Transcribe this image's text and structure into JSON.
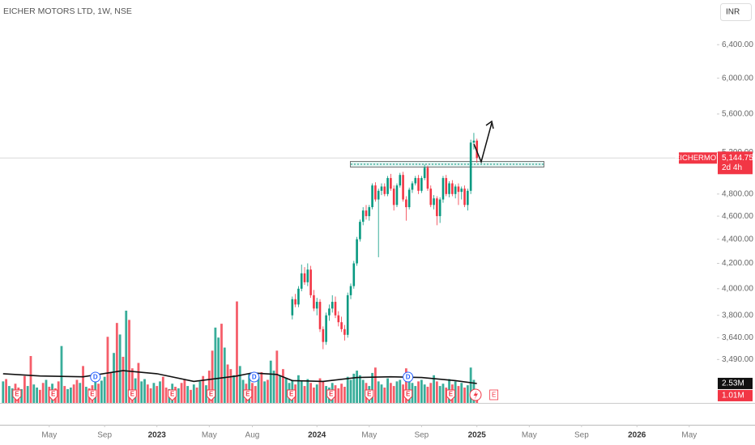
{
  "chart_data": {
    "type": "candlestick",
    "title": "EICHER MOTORS LTD, 1W, NSE",
    "currency": "INR",
    "log_scale": true,
    "up_color": "#089981",
    "down_color": "#f23645",
    "ylim": [
      3210,
      6975
    ],
    "yticks": [
      {
        "value": 3490,
        "label": "3,490.00"
      },
      {
        "value": 3640,
        "label": "3,640.00"
      },
      {
        "value": 3800,
        "label": "3,800.00"
      },
      {
        "value": 4000,
        "label": "4,000.00"
      },
      {
        "value": 4200,
        "label": "4,200.00"
      },
      {
        "value": 4400,
        "label": "4,400.00"
      },
      {
        "value": 4600,
        "label": "4,600.00"
      },
      {
        "value": 4800,
        "label": "4,800.00"
      },
      {
        "value": 5200,
        "label": "5,200.00"
      },
      {
        "value": 5600,
        "label": "5,600.00"
      },
      {
        "value": 6000,
        "label": "6,000.00"
      },
      {
        "value": 6400,
        "label": "6,400.00"
      }
    ],
    "xlim": [
      -51,
      182
    ],
    "xticks": [
      {
        "value": -35,
        "label": "May"
      },
      {
        "value": -17,
        "label": "Sep"
      },
      {
        "value": 0,
        "label": "2023"
      },
      {
        "value": 17,
        "label": "May"
      },
      {
        "value": 31,
        "label": "Aug"
      },
      {
        "value": 52,
        "label": "2024"
      },
      {
        "value": 69,
        "label": "May"
      },
      {
        "value": 86,
        "label": "Sep"
      },
      {
        "value": 104,
        "label": "2025"
      },
      {
        "value": 121,
        "label": "May"
      },
      {
        "value": 138,
        "label": "Sep"
      },
      {
        "value": 156,
        "label": "2026"
      },
      {
        "value": 173,
        "label": "May"
      }
    ],
    "candles": {
      "x": [
        44,
        45,
        46,
        47,
        48,
        49,
        50,
        51,
        52,
        53,
        54,
        55,
        56,
        57,
        58,
        59,
        60,
        61,
        62,
        63,
        64,
        65,
        66,
        67,
        68,
        69,
        70,
        71,
        72,
        73,
        74,
        75,
        76,
        77,
        78,
        79,
        80,
        81,
        82,
        83,
        84,
        85,
        86,
        87,
        88,
        89,
        90,
        91,
        92,
        93,
        94,
        95,
        96,
        97,
        98,
        99,
        100,
        101,
        102,
        103,
        104
      ],
      "open": [
        3800,
        3920,
        3880,
        4000,
        4120,
        4050,
        4150,
        3950,
        3850,
        3900,
        3700,
        3610,
        3800,
        3850,
        3900,
        3800,
        3750,
        3700,
        3660,
        3950,
        4020,
        4200,
        4400,
        4550,
        4650,
        4600,
        4680,
        4880,
        4750,
        4830,
        4870,
        4800,
        4950,
        4850,
        4700,
        4880,
        4980,
        4750,
        4680,
        4840,
        4900,
        4950,
        4830,
        4950,
        5050,
        4850,
        4700,
        4760,
        4600,
        4750,
        4950,
        4800,
        4900,
        4800,
        4870,
        4820,
        4850,
        4700,
        4830,
        5300,
        5320
      ],
      "high": [
        3940,
        3960,
        4020,
        4190,
        4170,
        4200,
        4180,
        3990,
        3930,
        3920,
        3720,
        3820,
        3880,
        3950,
        3940,
        3830,
        3790,
        3730,
        3970,
        4040,
        4220,
        4420,
        4570,
        4680,
        4700,
        4700,
        4900,
        4910,
        4850,
        4900,
        4900,
        4970,
        4990,
        4880,
        4900,
        5000,
        5010,
        4780,
        4860,
        4920,
        4970,
        4980,
        4970,
        5080,
        5070,
        4880,
        4790,
        4780,
        4770,
        4970,
        4980,
        4920,
        4930,
        4890,
        4900,
        4870,
        4880,
        4850,
        5330,
        5400,
        5340
      ],
      "low": [
        3770,
        3860,
        3860,
        3980,
        4030,
        4020,
        3930,
        3830,
        3800,
        3680,
        3560,
        3590,
        3760,
        3820,
        3780,
        3720,
        3680,
        3620,
        3640,
        3920,
        4000,
        4180,
        4380,
        4520,
        4570,
        4560,
        4660,
        4730,
        4250,
        4790,
        4780,
        4780,
        4830,
        4650,
        4680,
        4860,
        4730,
        4560,
        4660,
        4810,
        4880,
        4800,
        4810,
        4930,
        4830,
        4680,
        4660,
        4520,
        4540,
        4720,
        4780,
        4770,
        4780,
        4760,
        4700,
        4750,
        4680,
        4650,
        4800,
        5230,
        5100
      ],
      "close": [
        3920,
        3880,
        4000,
        4120,
        4050,
        4150,
        3950,
        3850,
        3900,
        3700,
        3610,
        3800,
        3850,
        3900,
        3800,
        3750,
        3700,
        3660,
        3950,
        4020,
        4200,
        4400,
        4550,
        4650,
        4600,
        4680,
        4880,
        4750,
        4830,
        4870,
        4800,
        4950,
        4850,
        4700,
        4880,
        4980,
        4750,
        4680,
        4840,
        4900,
        4950,
        4830,
        4950,
        5050,
        4850,
        4700,
        4760,
        4600,
        4750,
        4950,
        4800,
        4900,
        4800,
        4870,
        4820,
        4850,
        4700,
        4830,
        5300,
        5320,
        5144.75
      ]
    },
    "last_price": 5144.75,
    "last_price_label": "5,144.75",
    "symbol": "EICHERMOT",
    "countdown": "2d 4h",
    "volume": {
      "ylim": [
        0,
        52.4
      ],
      "x": [
        -50,
        -49,
        -48,
        -47,
        -46,
        -45,
        -44,
        -43,
        -42,
        -41,
        -40,
        -39,
        -38,
        -37,
        -36,
        -35,
        -34,
        -33,
        -32,
        -31,
        -30,
        -29,
        -28,
        -27,
        -26,
        -25,
        -24,
        -23,
        -22,
        -21,
        -20,
        -19,
        -18,
        -17,
        -16,
        -15,
        -14,
        -13,
        -12,
        -11,
        -10,
        -9,
        -8,
        -7,
        -6,
        -5,
        -4,
        -3,
        -2,
        -1,
        0,
        1,
        2,
        3,
        4,
        5,
        6,
        7,
        8,
        9,
        10,
        11,
        12,
        13,
        14,
        15,
        16,
        17,
        18,
        19,
        20,
        21,
        22,
        23,
        24,
        25,
        26,
        27,
        28,
        29,
        30,
        31,
        32,
        33,
        34,
        35,
        36,
        37,
        38,
        39,
        40,
        41,
        42,
        43,
        44,
        45,
        46,
        47,
        48,
        49,
        50,
        51,
        52,
        53,
        54,
        55,
        56,
        57,
        58,
        59,
        60,
        61,
        62,
        63,
        64,
        65,
        66,
        67,
        68,
        69,
        70,
        71,
        72,
        73,
        74,
        75,
        76,
        77,
        78,
        79,
        80,
        81,
        82,
        83,
        84,
        85,
        86,
        87,
        88,
        89,
        90,
        91,
        92,
        93,
        94,
        95,
        96,
        97,
        98,
        99,
        100,
        101,
        102,
        103,
        104
      ],
      "values": [
        2.8,
        3.1,
        2.2,
        1.9,
        2.5,
        2.0,
        1.8,
        3.5,
        2.2,
        6.1,
        2.4,
        2.0,
        1.7,
        2.6,
        3.0,
        2.1,
        2.5,
        1.9,
        2.8,
        7.4,
        2.2,
        1.8,
        2.0,
        2.4,
        3.0,
        2.6,
        4.8,
        2.1,
        1.9,
        2.3,
        3.2,
        2.5,
        2.9,
        3.4,
        8.6,
        4.0,
        6.5,
        10.4,
        8.9,
        6.0,
        12.0,
        10.8,
        4.5,
        3.2,
        5.2,
        2.8,
        3.1,
        2.4,
        1.9,
        2.6,
        2.2,
        2.8,
        3.4,
        2.0,
        1.8,
        2.5,
        2.1,
        1.9,
        2.6,
        3.0,
        2.2,
        1.7,
        2.4,
        2.0,
        2.8,
        3.5,
        2.3,
        4.2,
        6.8,
        9.8,
        8.5,
        10.3,
        7.2,
        5.0,
        4.4,
        3.6,
        13.2,
        4.8,
        3.0,
        2.5,
        3.8,
        2.6,
        2.2,
        3.4,
        4.0,
        2.8,
        3.0,
        5.5,
        4.2,
        6.8,
        3.6,
        4.4,
        3.2,
        2.6,
        3.0,
        2.4,
        3.6,
        2.8,
        2.2,
        3.1,
        2.6,
        2.0,
        2.4,
        3.2,
        2.8,
        2.2,
        2.0,
        2.6,
        2.3,
        1.9,
        2.5,
        2.1,
        3.4,
        3.0,
        3.8,
        4.2,
        3.6,
        3.0,
        2.6,
        2.2,
        3.9,
        4.6,
        2.8,
        2.4,
        2.0,
        3.2,
        2.6,
        2.2,
        2.8,
        3.0,
        2.4,
        4.5,
        3.4,
        2.6,
        2.2,
        2.8,
        3.0,
        2.4,
        2.1,
        2.6,
        3.6,
        2.8,
        2.2,
        2.5,
        2.0,
        3.1,
        2.4,
        2.8,
        2.2,
        2.6,
        2.0,
        2.3,
        4.6,
        3.0,
        1.01
      ],
      "rising": [
        1,
        0,
        1,
        1,
        0,
        0,
        1,
        0,
        1,
        0,
        1,
        1,
        0,
        0,
        1,
        0,
        1,
        0,
        0,
        1,
        0,
        1,
        1,
        0,
        0,
        1,
        0,
        1,
        0,
        0,
        1,
        0,
        1,
        1,
        0,
        0,
        1,
        0,
        1,
        0,
        1,
        0,
        0,
        1,
        0,
        1,
        1,
        0,
        0,
        1,
        0,
        1,
        0,
        0,
        1,
        1,
        0,
        1,
        0,
        0,
        1,
        0,
        1,
        0,
        1,
        0,
        1,
        0,
        0,
        1,
        1,
        0,
        1,
        0,
        0,
        1,
        0,
        1,
        1,
        0,
        1,
        0,
        0,
        1,
        0,
        1,
        0,
        1,
        1,
        0,
        1,
        0,
        1,
        1,
        1,
        0,
        1,
        1,
        0,
        1,
        0,
        0,
        1,
        0,
        0,
        1,
        1,
        1,
        0,
        0,
        0,
        0,
        1,
        1,
        1,
        1,
        1,
        1,
        0,
        1,
        1,
        0,
        1,
        1,
        0,
        1,
        0,
        0,
        1,
        1,
        0,
        0,
        1,
        1,
        1,
        0,
        1,
        1,
        0,
        0,
        1,
        0,
        1,
        1,
        0,
        1,
        0,
        1,
        0,
        1,
        0,
        1,
        1,
        1,
        0
      ],
      "last_label": "1.01M",
      "ma": {
        "x": [
          -50,
          -38,
          -24,
          -11,
          0,
          12,
          26,
          31,
          39,
          44,
          54,
          65,
          76,
          86,
          97,
          104
        ],
        "values": [
          3.8,
          3.5,
          3.4,
          4.2,
          3.8,
          2.8,
          3.5,
          3.9,
          3.7,
          2.9,
          2.8,
          3.3,
          3.4,
          3.3,
          2.9,
          2.53
        ],
        "last_label": "2.53M"
      }
    },
    "events": {
      "earnings": {
        "label": "E",
        "x": [
          -45.5,
          -33.7,
          -21,
          -8,
          5,
          17.6,
          29.5,
          43.7,
          56.6,
          69,
          81.6,
          95.5
        ]
      },
      "dividends": {
        "label": "D",
        "x": [
          -20,
          31.6,
          81.6
        ]
      },
      "upcoming_earnings": {
        "label": "E",
        "x": [
          109.5
        ]
      }
    }
  }
}
